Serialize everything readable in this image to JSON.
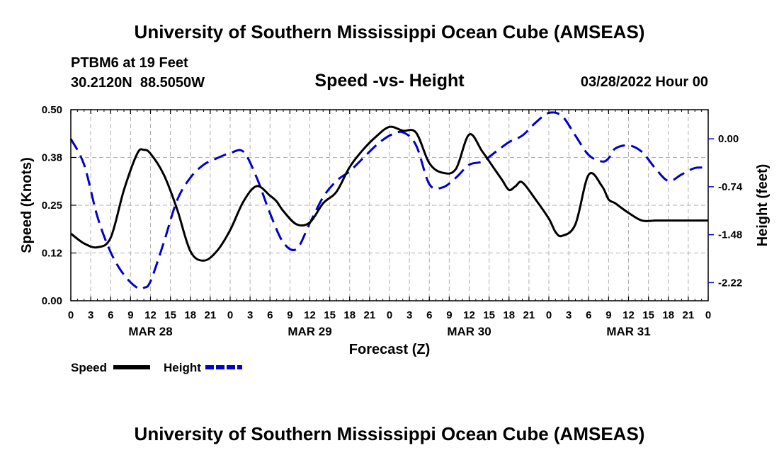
{
  "header": {
    "title": "University of Southern Mississippi Ocean Cube (AMSEAS)",
    "station": "PTBM6 at 19 Feet",
    "coords": "30.2120N  88.5050W",
    "subtitle": "Speed -vs- Height",
    "date": "03/28/2022 Hour 00"
  },
  "footer": {
    "title": "University of Southern Mississippi Ocean Cube (AMSEAS)"
  },
  "chart_data": {
    "type": "line",
    "title": "Speed -vs- Height",
    "xlabel": "Forecast (Z)",
    "ylabel_left": "Speed (Knots)",
    "ylabel_right": "Height (feet)",
    "x_range": [
      0,
      96
    ],
    "x_ticks": [
      0,
      3,
      6,
      9,
      12,
      15,
      18,
      21,
      24,
      27,
      30,
      33,
      36,
      39,
      42,
      45,
      48,
      51,
      54,
      57,
      60,
      63,
      66,
      69,
      72,
      75,
      78,
      81,
      84,
      87,
      90,
      93,
      96
    ],
    "x_tick_labels": [
      "0",
      "3",
      "6",
      "9",
      "12",
      "15",
      "18",
      "21",
      "0",
      "3",
      "6",
      "9",
      "12",
      "15",
      "18",
      "21",
      "0",
      "3",
      "6",
      "9",
      "12",
      "15",
      "18",
      "21",
      "0",
      "3",
      "6",
      "9",
      "12",
      "15",
      "18",
      "21",
      "0"
    ],
    "day_labels": [
      {
        "label": "MAR 28",
        "x": 12
      },
      {
        "label": "MAR 29",
        "x": 36
      },
      {
        "label": "MAR 30",
        "x": 60
      },
      {
        "label": "MAR 31",
        "x": 84
      }
    ],
    "y_left_range": [
      0,
      0.5
    ],
    "y_left_ticks": [
      0.0,
      0.125,
      0.25,
      0.375,
      0.5
    ],
    "y_left_tick_labels": [
      "0.00",
      "0.12",
      "0.25",
      "0.38",
      "0.50"
    ],
    "y_right_range": [
      -2.5,
      0.45
    ],
    "y_right_ticks": [
      0.0,
      -0.74,
      -1.48,
      -2.22
    ],
    "y_right_tick_labels": [
      "0.00",
      "-0.74",
      "-1.48",
      "-2.22"
    ],
    "grid": true,
    "legend": [
      {
        "name": "Speed",
        "color": "#000000",
        "style": "solid"
      },
      {
        "name": "Height",
        "color": "#0000cc",
        "style": "dashed"
      }
    ],
    "series": [
      {
        "name": "Speed",
        "axis": "left",
        "color": "#000000",
        "x": [
          0,
          2,
          4,
          6,
          8,
          10,
          11,
          12,
          14,
          16,
          18,
          20,
          22,
          24,
          26,
          28,
          30,
          31,
          32,
          34,
          36,
          38,
          40,
          42,
          44,
          46,
          48,
          50,
          52,
          54,
          56,
          58,
          60,
          62,
          64,
          65,
          66,
          67,
          68,
          70,
          72,
          73,
          74,
          76,
          78,
          80,
          81,
          82,
          84,
          86,
          88,
          89,
          90,
          92,
          94,
          96
        ],
        "values": [
          0.176,
          0.15,
          0.14,
          0.165,
          0.29,
          0.385,
          0.395,
          0.385,
          0.33,
          0.24,
          0.13,
          0.105,
          0.13,
          0.185,
          0.26,
          0.3,
          0.275,
          0.26,
          0.235,
          0.2,
          0.205,
          0.255,
          0.285,
          0.35,
          0.395,
          0.43,
          0.455,
          0.445,
          0.44,
          0.36,
          0.335,
          0.345,
          0.435,
          0.39,
          0.34,
          0.315,
          0.29,
          0.3,
          0.31,
          0.265,
          0.215,
          0.18,
          0.17,
          0.2,
          0.33,
          0.3,
          0.265,
          0.255,
          0.23,
          0.21,
          0.21,
          0.21,
          0.21,
          0.21,
          0.21,
          0.21
        ]
      },
      {
        "name": "Height",
        "axis": "right",
        "color": "#0000cc",
        "x": [
          0,
          2,
          4,
          6,
          8,
          10,
          11,
          12,
          14,
          16,
          18,
          20,
          22,
          24,
          26,
          28,
          30,
          32,
          34,
          36,
          38,
          40,
          42,
          44,
          46,
          48,
          50,
          52,
          54,
          56,
          58,
          60,
          62,
          64,
          66,
          68,
          70,
          72,
          74,
          76,
          78,
          80,
          81,
          82,
          84,
          86,
          88,
          90,
          92,
          94,
          96
        ],
        "values": [
          0.0,
          -0.4,
          -1.2,
          -1.75,
          -2.1,
          -2.3,
          -2.3,
          -2.2,
          -1.6,
          -0.95,
          -0.6,
          -0.4,
          -0.3,
          -0.22,
          -0.2,
          -0.6,
          -1.15,
          -1.6,
          -1.7,
          -1.3,
          -0.9,
          -0.65,
          -0.5,
          -0.3,
          -0.1,
          0.05,
          0.1,
          -0.1,
          -0.7,
          -0.75,
          -0.6,
          -0.4,
          -0.35,
          -0.2,
          -0.05,
          0.05,
          0.25,
          0.4,
          0.35,
          0.05,
          -0.25,
          -0.35,
          -0.3,
          -0.15,
          -0.1,
          -0.2,
          -0.45,
          -0.65,
          -0.55,
          -0.45,
          -0.45
        ]
      }
    ]
  }
}
